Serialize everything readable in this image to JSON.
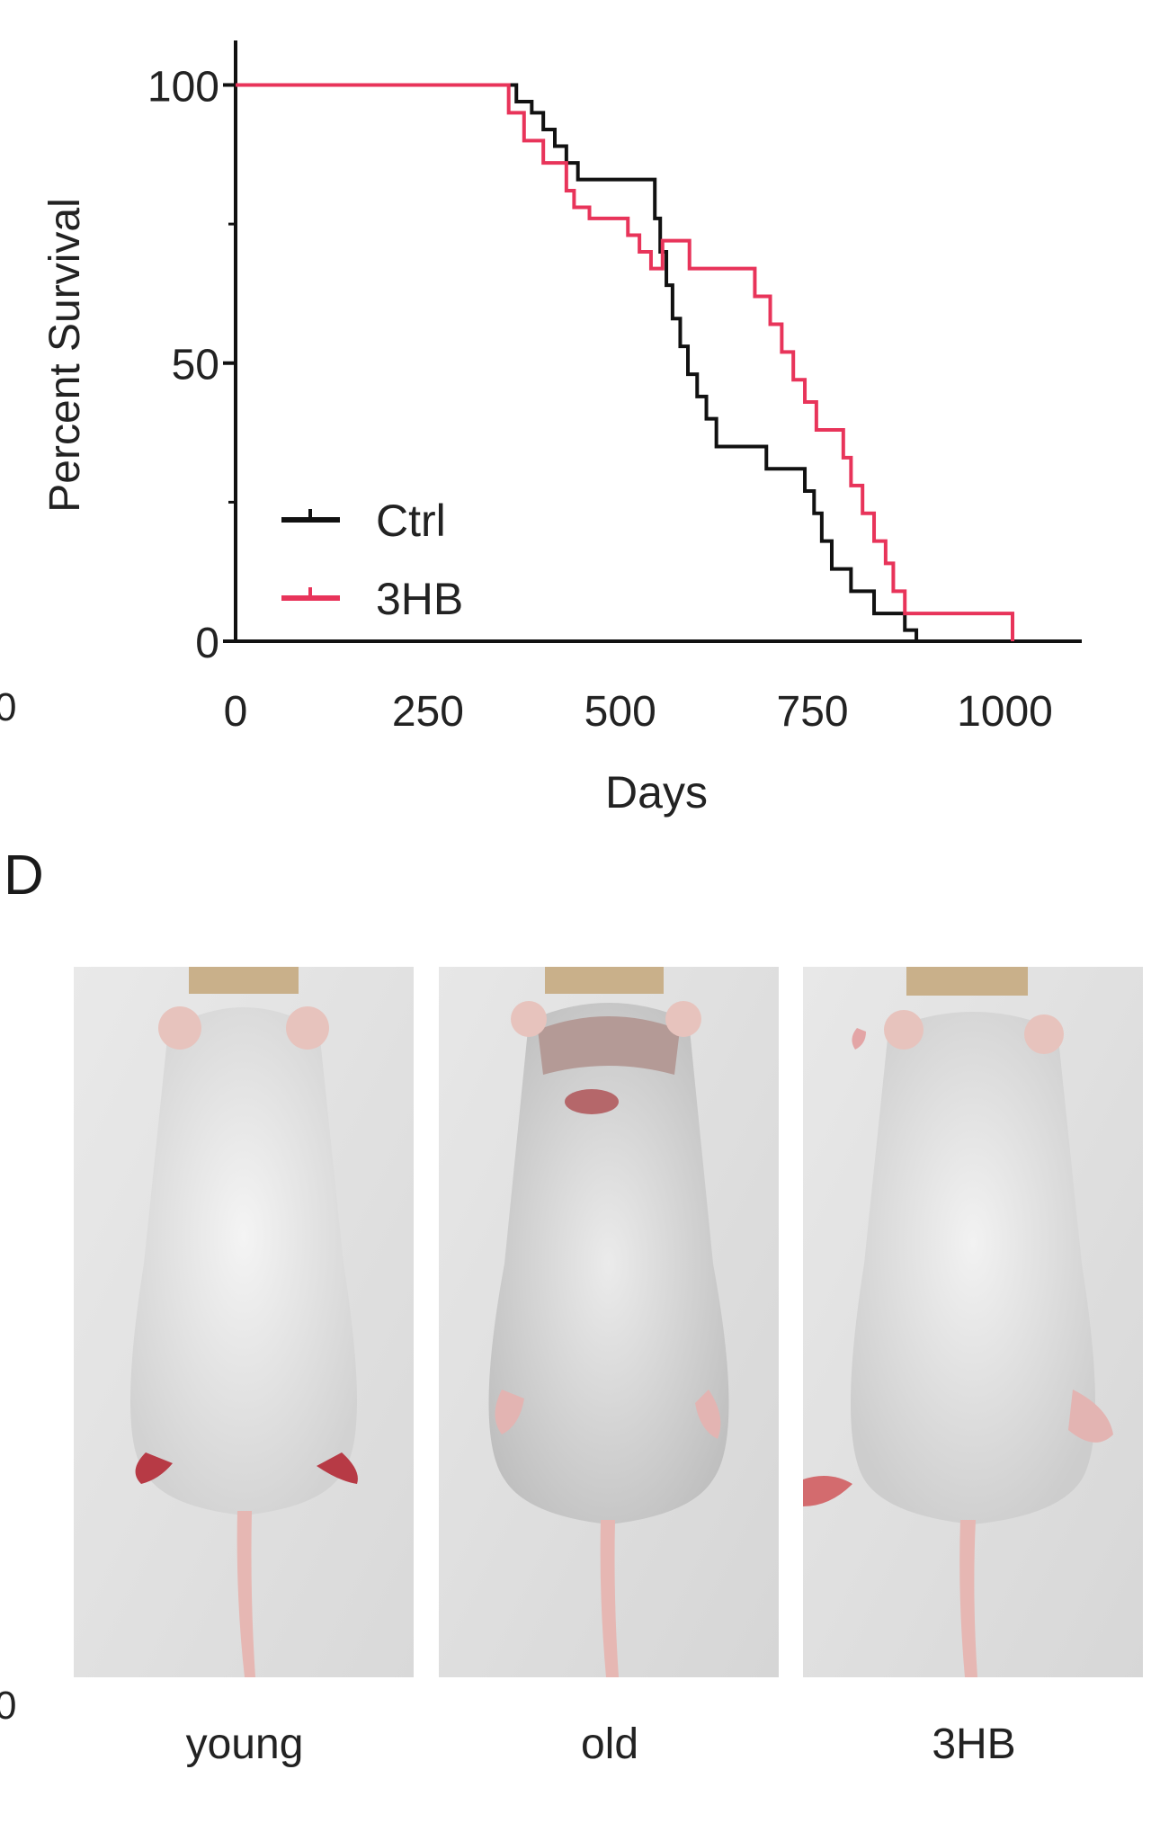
{
  "chart_data": {
    "type": "line",
    "step": true,
    "xlabel": "Days",
    "ylabel": "Percent Survival",
    "xlim": [
      0,
      1100
    ],
    "ylim": [
      0,
      108
    ],
    "xticks": [
      0,
      250,
      500,
      750,
      1000
    ],
    "yticks": [
      0,
      50,
      100
    ],
    "grid": false,
    "legend_position": "bottom-left",
    "series": [
      {
        "name": "Ctrl",
        "color": "#111111",
        "x": [
          0,
          355,
          365,
          385,
          400,
          415,
          430,
          445,
          540,
          545,
          552,
          560,
          568,
          578,
          588,
          600,
          612,
          625,
          650,
          690,
          730,
          740,
          752,
          762,
          775,
          800,
          815,
          830,
          850,
          870,
          885
        ],
        "y": [
          100,
          100,
          97,
          95,
          92,
          89,
          86,
          83,
          83,
          76,
          70,
          64,
          58,
          53,
          48,
          44,
          40,
          35,
          35,
          31,
          31,
          27,
          23,
          18,
          13,
          9,
          9,
          5,
          5,
          2,
          0
        ]
      },
      {
        "name": "3HB",
        "color": "#e8345a",
        "x": [
          0,
          345,
          355,
          375,
          400,
          430,
          440,
          460,
          475,
          510,
          525,
          540,
          555,
          590,
          665,
          675,
          695,
          710,
          725,
          740,
          755,
          790,
          800,
          815,
          830,
          845,
          855,
          870,
          1010
        ],
        "y": [
          100,
          100,
          95,
          90,
          86,
          81,
          78,
          76,
          76,
          73,
          70,
          67,
          72,
          67,
          67,
          62,
          57,
          52,
          47,
          43,
          38,
          33,
          28,
          23,
          18,
          14,
          9,
          5,
          0
        ]
      }
    ]
  },
  "figure": {
    "panel_letter_d": "D",
    "left_edge_zero_top": "0",
    "left_edge_zero_bottom": "0",
    "photo_labels": [
      "young",
      "old",
      "3HB"
    ]
  }
}
